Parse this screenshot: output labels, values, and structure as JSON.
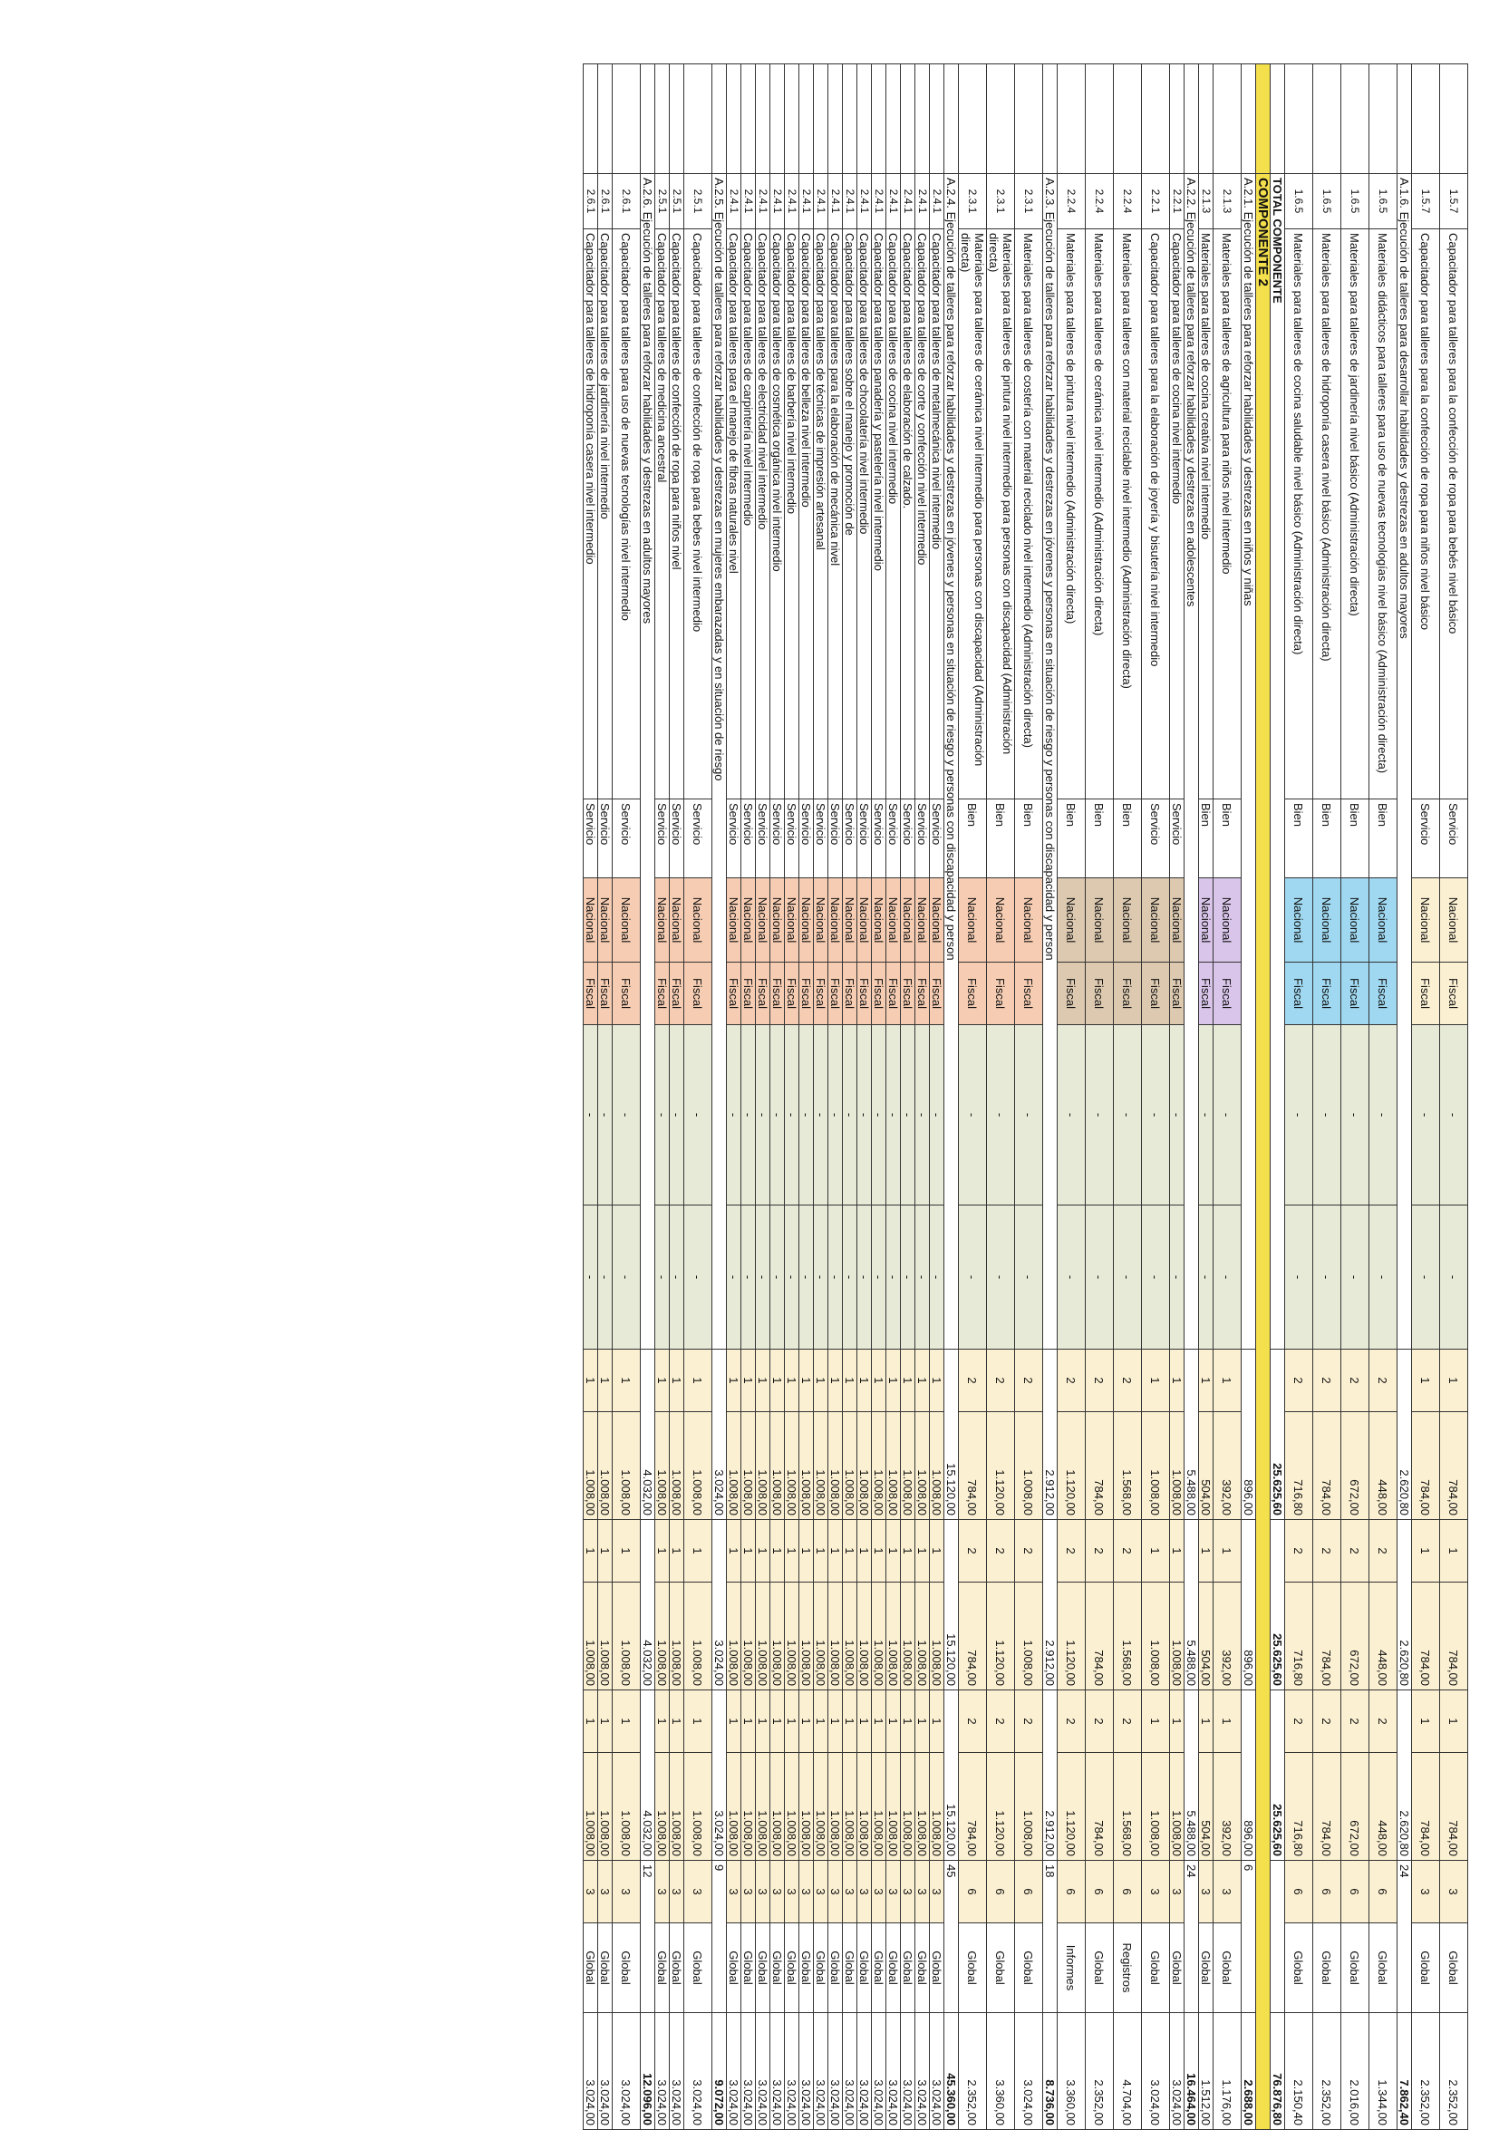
{
  "rows": [
    {
      "kind": "item",
      "code": "1.5.7",
      "desc": "Capacitador para talleres para la confección de ropa para bebés nivel básico",
      "tipo": "Servicio",
      "origen": "Nacional",
      "fuente": "Fiscal",
      "b1": "-",
      "b2": "-",
      "q1": "1",
      "v1": "784,00",
      "q2": "1",
      "v2": "784,00",
      "q3": "1",
      "v3": "784,00",
      "q4": "3",
      "unidad": "Global",
      "total": "2.352,00",
      "color": "cream"
    },
    {
      "kind": "item",
      "code": "1.5.7",
      "desc": "Capacitador para talleres para la confección de ropa para niños nivel básico",
      "tipo": "Servicio",
      "origen": "Nacional",
      "fuente": "Fiscal",
      "b1": "-",
      "b2": "-",
      "q1": "1",
      "v1": "784,00",
      "q2": "1",
      "v2": "784,00",
      "q3": "1",
      "v3": "784,00",
      "q4": "3",
      "unidad": "Global",
      "total": "2.352,00",
      "color": "cream"
    },
    {
      "kind": "section",
      "desc": "A.1.6. Ejecución de talleres para desarrollar habilidades y destrezas en adultos mayores",
      "s1": "2.620,80",
      "s2": "2.620,80",
      "s3": "2.620,80",
      "s4": "24",
      "total": "7.862,40"
    },
    {
      "kind": "item",
      "code": "1.6.5",
      "desc": "Materiales didácticos para talleres para uso de nuevas tecnologías nivel básico (Administración directa)",
      "tipo": "Bien",
      "origen": "Nacional",
      "fuente": "Fiscal",
      "b1": "-",
      "b2": "-",
      "q1": "2",
      "v1": "448,00",
      "q2": "2",
      "v2": "448,00",
      "q3": "2",
      "v3": "448,00",
      "q4": "6",
      "unidad": "Global",
      "total": "1.344,00",
      "color": "blue"
    },
    {
      "kind": "item",
      "code": "1.6.5",
      "desc": "Materiales para talleres de jardinería nivel básico (Administración directa)",
      "tipo": "Bien",
      "origen": "Nacional",
      "fuente": "Fiscal",
      "b1": "-",
      "b2": "-",
      "q1": "2",
      "v1": "672,00",
      "q2": "2",
      "v2": "672,00",
      "q3": "2",
      "v3": "672,00",
      "q4": "6",
      "unidad": "Global",
      "total": "2.016,00",
      "color": "blue"
    },
    {
      "kind": "item",
      "code": "1.6.5",
      "desc": "Materiales para talleres de hidroponía casera nivel básico (Administración directa)",
      "tipo": "Bien",
      "origen": "Nacional",
      "fuente": "Fiscal",
      "b1": "-",
      "b2": "-",
      "q1": "2",
      "v1": "784,00",
      "q2": "2",
      "v2": "784,00",
      "q3": "2",
      "v3": "784,00",
      "q4": "6",
      "unidad": "Global",
      "total": "2.352,00",
      "color": "blue"
    },
    {
      "kind": "item",
      "code": "1.6.5",
      "desc": "Materiales para talleres de cocina saludable nivel básico (Administración directa)",
      "tipo": "Bien",
      "origen": "Nacional",
      "fuente": "Fiscal",
      "b1": "-",
      "b2": "-",
      "q1": "2",
      "v1": "716,80",
      "q2": "2",
      "v2": "716,80",
      "q3": "2",
      "v3": "716,80",
      "q4": "6",
      "unidad": "Global",
      "total": "2.150,40",
      "color": "blue"
    },
    {
      "kind": "total",
      "desc": "TOTAL COMPONENTE",
      "s1": "25.625,60",
      "s2": "25.625,60",
      "s3": "25.625,60",
      "s4": "",
      "total": "76.876,80"
    },
    {
      "kind": "comp",
      "desc": "COMPONENTE 2"
    },
    {
      "kind": "section",
      "desc": "A.2.1. Ejecución de talleres para reforzar habilidades y destrezas en niños y niñas",
      "s1": "896,00",
      "s2": "896,00",
      "s3": "896,00",
      "s4": "6",
      "total": "2.688,00"
    },
    {
      "kind": "item",
      "code": "2.1.3",
      "desc": "Materiales para talleres de agricultura para niños nivel intermedio",
      "tipo": "Bien",
      "origen": "Nacional",
      "fuente": "Fiscal",
      "b1": "-",
      "b2": "-",
      "q1": "1",
      "v1": "392,00",
      "q2": "1",
      "v2": "392,00",
      "q3": "1",
      "v3": "392,00",
      "q4": "3",
      "unidad": "Global",
      "total": "1.176,00",
      "color": "purple"
    },
    {
      "kind": "item",
      "code": "2.1.3",
      "desc": "Materiales para talleres de cocina creativa nivel intermedio",
      "tipo": "Bien",
      "origen": "Nacional",
      "fuente": "Fiscal",
      "b1": "-",
      "b2": "-",
      "q1": "1",
      "v1": "504,00",
      "q2": "1",
      "v2": "504,00",
      "q3": "1",
      "v3": "504,00",
      "q4": "3",
      "unidad": "Global",
      "total": "1.512,00",
      "color": "purple"
    },
    {
      "kind": "section",
      "desc": "A.2.2. Ejecución de talleres para reforzar habilidades y destrezas en adolescentes",
      "s1": "5.488,00",
      "s2": "5.488,00",
      "s3": "5.488,00",
      "s4": "24",
      "total": "16.464,00"
    },
    {
      "kind": "item",
      "code": "2.2.1",
      "desc": "Capacitador para talleres de cocina nivel intermedio",
      "tipo": "Servicio",
      "origen": "Nacional",
      "fuente": "Fiscal",
      "b1": "-",
      "b2": "-",
      "q1": "1",
      "v1": "1.008,00",
      "q2": "1",
      "v2": "1.008,00",
      "q3": "1",
      "v3": "1.008,00",
      "q4": "3",
      "unidad": "Global",
      "total": "3.024,00",
      "color": "tan"
    },
    {
      "kind": "item",
      "code": "2.2.1",
      "desc": "Capacitador para talleres para la elaboración de joyería y bisutería nivel intermedio",
      "tipo": "Servicio",
      "origen": "Nacional",
      "fuente": "Fiscal",
      "b1": "-",
      "b2": "-",
      "q1": "1",
      "v1": "1.008,00",
      "q2": "1",
      "v2": "1.008,00",
      "q3": "1",
      "v3": "1.008,00",
      "q4": "3",
      "unidad": "Global",
      "total": "3.024,00",
      "color": "tan"
    },
    {
      "kind": "item",
      "code": "2.2.4",
      "desc": "Materiales para talleres con material reciclable nivel intermedio (Administración directa)",
      "tipo": "Bien",
      "origen": "Nacional",
      "fuente": "Fiscal",
      "b1": "-",
      "b2": "-",
      "q1": "2",
      "v1": "1.568,00",
      "q2": "2",
      "v2": "1.568,00",
      "q3": "2",
      "v3": "1.568,00",
      "q4": "6",
      "unidad": "Registros",
      "total": "4.704,00",
      "color": "tan"
    },
    {
      "kind": "item",
      "code": "2.2.4",
      "desc": "Materiales para talleres de cerámica nivel intermedio (Administración directa)",
      "tipo": "Bien",
      "origen": "Nacional",
      "fuente": "Fiscal",
      "b1": "-",
      "b2": "-",
      "q1": "2",
      "v1": "784,00",
      "q2": "2",
      "v2": "784,00",
      "q3": "2",
      "v3": "784,00",
      "q4": "6",
      "unidad": "Global",
      "total": "2.352,00",
      "color": "tan"
    },
    {
      "kind": "item",
      "code": "2.2.4",
      "desc": "Materiales para talleres de pintura nivel intermedio (Administración directa)",
      "tipo": "Bien",
      "origen": "Nacional",
      "fuente": "Fiscal",
      "b1": "-",
      "b2": "-",
      "q1": "2",
      "v1": "1.120,00",
      "q2": "2",
      "v2": "1.120,00",
      "q3": "2",
      "v3": "1.120,00",
      "q4": "6",
      "unidad": "Informes",
      "total": "3.360,00",
      "color": "tan"
    },
    {
      "kind": "section",
      "desc": "A.2.3. Ejecución de talleres para reforzar habilidades y destrezas en jóvenes y personas en situación de riesgo y personas con discapacidad y person",
      "s1": "2.912,00",
      "s2": "2.912,00",
      "s3": "2.912,00",
      "s4": "18",
      "total": "8.736,00"
    },
    {
      "kind": "item",
      "code": "2.3.1",
      "desc": "Materiales para talleres de costería con material reciclado nivel intermedio (Administración directa)",
      "tipo": "Bien",
      "origen": "Nacional",
      "fuente": "Fiscal",
      "b1": "-",
      "b2": "-",
      "q1": "2",
      "v1": "1.008,00",
      "q2": "2",
      "v2": "1.008,00",
      "q3": "2",
      "v3": "1.008,00",
      "q4": "6",
      "unidad": "Global",
      "total": "3.024,00",
      "color": "peach"
    },
    {
      "kind": "item",
      "code": "2.3.1",
      "desc": "Materiales para talleres de pintura nivel intermedio para personas con discapacidad (Administración directa)",
      "tipo": "Bien",
      "origen": "Nacional",
      "fuente": "Fiscal",
      "b1": "-",
      "b2": "-",
      "q1": "2",
      "v1": "1.120,00",
      "q2": "2",
      "v2": "1.120,00",
      "q3": "2",
      "v3": "1.120,00",
      "q4": "6",
      "unidad": "Global",
      "total": "3.360,00",
      "color": "peach"
    },
    {
      "kind": "item",
      "code": "2.3.1",
      "desc": "Materiales para talleres de cerámica nivel intermedio para personas con discapacidad (Administración directa)",
      "tipo": "Bien",
      "origen": "Nacional",
      "fuente": "Fiscal",
      "b1": "-",
      "b2": "-",
      "q1": "2",
      "v1": "784,00",
      "q2": "2",
      "v2": "784,00",
      "q3": "2",
      "v3": "784,00",
      "q4": "6",
      "unidad": "Global",
      "total": "2.352,00",
      "color": "peach"
    },
    {
      "kind": "section",
      "desc": "A.2.4. Ejecución de talleres para reforzar habilidades y destrezas en jóvenes y personas en situación de riesgo y personas con discapacidad y person",
      "s1": "15.120,00",
      "s2": "15.120,00",
      "s3": "15.120,00",
      "s4": "45",
      "total": "45.360,00"
    },
    {
      "kind": "item",
      "code": "2.4.1",
      "desc": "Capacitador para talleres de metalmecánica nivel intermedio",
      "tipo": "Servicio",
      "origen": "Nacional",
      "fuente": "Fiscal",
      "b1": "-",
      "b2": "-",
      "q1": "1",
      "v1": "1.008,00",
      "q2": "1",
      "v2": "1.008,00",
      "q3": "1",
      "v3": "1.008,00",
      "q4": "3",
      "unidad": "Global",
      "total": "3.024,00",
      "color": "peach"
    },
    {
      "kind": "item",
      "code": "2.4.1",
      "desc": "Capacitador para talleres de corte y confección nivel intermedio",
      "tipo": "Servicio",
      "origen": "Nacional",
      "fuente": "Fiscal",
      "b1": "-",
      "b2": "-",
      "q1": "1",
      "v1": "1.008,00",
      "q2": "1",
      "v2": "1.008,00",
      "q3": "1",
      "v3": "1.008,00",
      "q4": "3",
      "unidad": "Global",
      "total": "3.024,00",
      "color": "peach"
    },
    {
      "kind": "item",
      "code": "2.4.1",
      "desc": "Capacitador para talleres de elaboración de calzado.",
      "tipo": "Servicio",
      "origen": "Nacional",
      "fuente": "Fiscal",
      "b1": "-",
      "b2": "-",
      "q1": "1",
      "v1": "1.008,00",
      "q2": "1",
      "v2": "1.008,00",
      "q3": "1",
      "v3": "1.008,00",
      "q4": "3",
      "unidad": "Global",
      "total": "3.024,00",
      "color": "peach"
    },
    {
      "kind": "item",
      "code": "2.4.1",
      "desc": "Capacitador para talleres de cocina nivel intermedio",
      "tipo": "Servicio",
      "origen": "Nacional",
      "fuente": "Fiscal",
      "b1": "-",
      "b2": "-",
      "q1": "1",
      "v1": "1.008,00",
      "q2": "1",
      "v2": "1.008,00",
      "q3": "1",
      "v3": "1.008,00",
      "q4": "3",
      "unidad": "Global",
      "total": "3.024,00",
      "color": "peach"
    },
    {
      "kind": "item",
      "code": "2.4.1",
      "desc": "Capacitador para talleres panadería y pastelería nivel intermedio",
      "tipo": "Servicio",
      "origen": "Nacional",
      "fuente": "Fiscal",
      "b1": "-",
      "b2": "-",
      "q1": "1",
      "v1": "1.008,00",
      "q2": "1",
      "v2": "1.008,00",
      "q3": "1",
      "v3": "1.008,00",
      "q4": "3",
      "unidad": "Global",
      "total": "3.024,00",
      "color": "peach"
    },
    {
      "kind": "item",
      "code": "2.4.1",
      "desc": "Capacitador para talleres de chocolatería nivel intermedio",
      "tipo": "Servicio",
      "origen": "Nacional",
      "fuente": "Fiscal",
      "b1": "-",
      "b2": "-",
      "q1": "1",
      "v1": "1.008,00",
      "q2": "1",
      "v2": "1.008,00",
      "q3": "1",
      "v3": "1.008,00",
      "q4": "3",
      "unidad": "Global",
      "total": "3.024,00",
      "color": "peach"
    },
    {
      "kind": "item",
      "code": "2.4.1",
      "desc": "Capacitador para talleres sobre el manejo y promoción de",
      "tipo": "Servicio",
      "origen": "Nacional",
      "fuente": "Fiscal",
      "b1": "-",
      "b2": "-",
      "q1": "1",
      "v1": "1.008,00",
      "q2": "1",
      "v2": "1.008,00",
      "q3": "1",
      "v3": "1.008,00",
      "q4": "3",
      "unidad": "Global",
      "total": "3.024,00",
      "color": "peach"
    },
    {
      "kind": "item",
      "code": "2.4.1",
      "desc": "Capacitador para talleres para la elaboración de mecánica nivel",
      "tipo": "Servicio",
      "origen": "Nacional",
      "fuente": "Fiscal",
      "b1": "-",
      "b2": "-",
      "q1": "1",
      "v1": "1.008,00",
      "q2": "1",
      "v2": "1.008,00",
      "q3": "1",
      "v3": "1.008,00",
      "q4": "3",
      "unidad": "Global",
      "total": "3.024,00",
      "color": "peach"
    },
    {
      "kind": "item",
      "code": "2.4.1",
      "desc": "Capacitador para talleres de técnicas de impresión artesanal",
      "tipo": "Servicio",
      "origen": "Nacional",
      "fuente": "Fiscal",
      "b1": "-",
      "b2": "-",
      "q1": "1",
      "v1": "1.008,00",
      "q2": "1",
      "v2": "1.008,00",
      "q3": "1",
      "v3": "1.008,00",
      "q4": "3",
      "unidad": "Global",
      "total": "3.024,00",
      "color": "peach"
    },
    {
      "kind": "item",
      "code": "2.4.1",
      "desc": "Capacitador para talleres de belleza nivel intermedio",
      "tipo": "Servicio",
      "origen": "Nacional",
      "fuente": "Fiscal",
      "b1": "-",
      "b2": "-",
      "q1": "1",
      "v1": "1.008,00",
      "q2": "1",
      "v2": "1.008,00",
      "q3": "1",
      "v3": "1.008,00",
      "q4": "3",
      "unidad": "Global",
      "total": "3.024,00",
      "color": "peach"
    },
    {
      "kind": "item",
      "code": "2.4.1",
      "desc": "Capacitador para talleres de barbería nivel intermedio",
      "tipo": "Servicio",
      "origen": "Nacional",
      "fuente": "Fiscal",
      "b1": "-",
      "b2": "-",
      "q1": "1",
      "v1": "1.008,00",
      "q2": "1",
      "v2": "1.008,00",
      "q3": "1",
      "v3": "1.008,00",
      "q4": "3",
      "unidad": "Global",
      "total": "3.024,00",
      "color": "peach"
    },
    {
      "kind": "item",
      "code": "2.4.1",
      "desc": "Capacitador para talleres de cosmética orgánica nivel intermedio",
      "tipo": "Servicio",
      "origen": "Nacional",
      "fuente": "Fiscal",
      "b1": "-",
      "b2": "-",
      "q1": "1",
      "v1": "1.008,00",
      "q2": "1",
      "v2": "1.008,00",
      "q3": "1",
      "v3": "1.008,00",
      "q4": "3",
      "unidad": "Global",
      "total": "3.024,00",
      "color": "peach"
    },
    {
      "kind": "item",
      "code": "2.4.1",
      "desc": "Capacitador para talleres de electricidad nivel intermedio",
      "tipo": "Servicio",
      "origen": "Nacional",
      "fuente": "Fiscal",
      "b1": "-",
      "b2": "-",
      "q1": "1",
      "v1": "1.008,00",
      "q2": "1",
      "v2": "1.008,00",
      "q3": "1",
      "v3": "1.008,00",
      "q4": "3",
      "unidad": "Global",
      "total": "3.024,00",
      "color": "peach"
    },
    {
      "kind": "item",
      "code": "2.4.1",
      "desc": "Capacitador para talleres de carpintería nivel intermedio",
      "tipo": "Servicio",
      "origen": "Nacional",
      "fuente": "Fiscal",
      "b1": "-",
      "b2": "-",
      "q1": "1",
      "v1": "1.008,00",
      "q2": "1",
      "v2": "1.008,00",
      "q3": "1",
      "v3": "1.008,00",
      "q4": "3",
      "unidad": "Global",
      "total": "3.024,00",
      "color": "peach"
    },
    {
      "kind": "item",
      "code": "2.4.1",
      "desc": "Capacitador para talleres para el manejo de fibras naturales nivel",
      "tipo": "Servicio",
      "origen": "Nacional",
      "fuente": "Fiscal",
      "b1": "-",
      "b2": "-",
      "q1": "1",
      "v1": "1.008,00",
      "q2": "1",
      "v2": "1.008,00",
      "q3": "1",
      "v3": "1.008,00",
      "q4": "3",
      "unidad": "Global",
      "total": "3.024,00",
      "color": "peach"
    },
    {
      "kind": "section",
      "desc": "A.2.5. Ejecución de talleres para reforzar habilidades y destrezas en mujeres embarazadas y en situación de riesgo",
      "s1": "3.024,00",
      "s2": "3.024,00",
      "s3": "3.024,00",
      "s4": "9",
      "total": "9.072,00"
    },
    {
      "kind": "item",
      "code": "2.5.1",
      "desc": "Capacitador para talleres de confección de ropa para bebes nivel intermedio",
      "tipo": "Servicio",
      "origen": "Nacional",
      "fuente": "Fiscal",
      "b1": "-",
      "b2": "-",
      "q1": "1",
      "v1": "1.008,00",
      "q2": "1",
      "v2": "1.008,00",
      "q3": "1",
      "v3": "1.008,00",
      "q4": "3",
      "unidad": "Global",
      "total": "3.024,00",
      "color": "peach"
    },
    {
      "kind": "item",
      "code": "2.5.1",
      "desc": "Capacitador para talleres de confección de ropa para niños nivel",
      "tipo": "Servicio",
      "origen": "Nacional",
      "fuente": "Fiscal",
      "b1": "-",
      "b2": "-",
      "q1": "1",
      "v1": "1.008,00",
      "q2": "1",
      "v2": "1.008,00",
      "q3": "1",
      "v3": "1.008,00",
      "q4": "3",
      "unidad": "Global",
      "total": "3.024,00",
      "color": "peach"
    },
    {
      "kind": "item",
      "code": "2.5.1",
      "desc": "Capacitador para talleres de medicina ancestral",
      "tipo": "Servicio",
      "origen": "Nacional",
      "fuente": "Fiscal",
      "b1": "-",
      "b2": "-",
      "q1": "1",
      "v1": "1.008,00",
      "q2": "1",
      "v2": "1.008,00",
      "q3": "1",
      "v3": "1.008,00",
      "q4": "3",
      "unidad": "Global",
      "total": "3.024,00",
      "color": "peach"
    },
    {
      "kind": "section",
      "desc": "A.2.6. Ejecución de talleres para reforzar habilidades y destrezas en adultos mayores",
      "s1": "4.032,00",
      "s2": "4.032,00",
      "s3": "4.032,00",
      "s4": "12",
      "total": "12.096,00"
    },
    {
      "kind": "item",
      "code": "2.6.1",
      "desc": "Capacitador para talleres para uso de nuevas tecnologías nivel intermedio",
      "tipo": "Servicio",
      "origen": "Nacional",
      "fuente": "Fiscal",
      "b1": "-",
      "b2": "-",
      "q1": "1",
      "v1": "1.008,00",
      "q2": "1",
      "v2": "1.008,00",
      "q3": "1",
      "v3": "1.008,00",
      "q4": "3",
      "unidad": "Global",
      "total": "3.024,00",
      "color": "peach"
    },
    {
      "kind": "item",
      "code": "2.6.1",
      "desc": "Capacitador para talleres de jardinería nivel intermedio",
      "tipo": "Servicio",
      "origen": "Nacional",
      "fuente": "Fiscal",
      "b1": "-",
      "b2": "-",
      "q1": "1",
      "v1": "1.008,00",
      "q2": "1",
      "v2": "1.008,00",
      "q3": "1",
      "v3": "1.008,00",
      "q4": "3",
      "unidad": "Global",
      "total": "3.024,00",
      "color": "peach"
    },
    {
      "kind": "item",
      "code": "2.6.1",
      "desc": "Capacitador para talleres de hidroponía casera nivel intermedio",
      "tipo": "Servicio",
      "origen": "Nacional",
      "fuente": "Fiscal",
      "b1": "-",
      "b2": "-",
      "q1": "1",
      "v1": "1.008,00",
      "q2": "1",
      "v2": "1.008,00",
      "q3": "1",
      "v3": "1.008,00",
      "q4": "3",
      "unidad": "Global",
      "total": "3.024,00",
      "color": "peach"
    }
  ]
}
